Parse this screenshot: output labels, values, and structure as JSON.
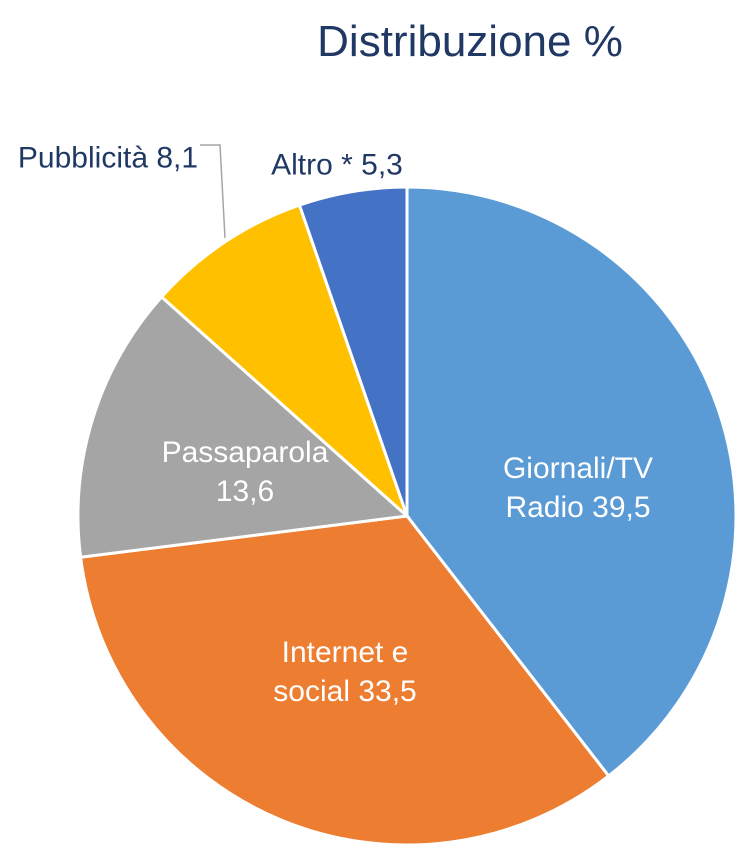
{
  "chart_data": {
    "type": "pie",
    "title": "Distribuzione %",
    "categories": [
      "Giornali/TV Radio",
      "Internet e social",
      "Passaparola",
      "Pubblicità",
      "Altro *"
    ],
    "values": [
      39.5,
      33.5,
      13.6,
      8.1,
      5.3
    ],
    "value_labels": [
      "39,5",
      "33,5",
      "13,6",
      "8,1",
      "5,3"
    ],
    "colors": [
      "#5b9bd5",
      "#ed7d31",
      "#a5a5a5",
      "#ffc000",
      "#4472c4"
    ]
  }
}
